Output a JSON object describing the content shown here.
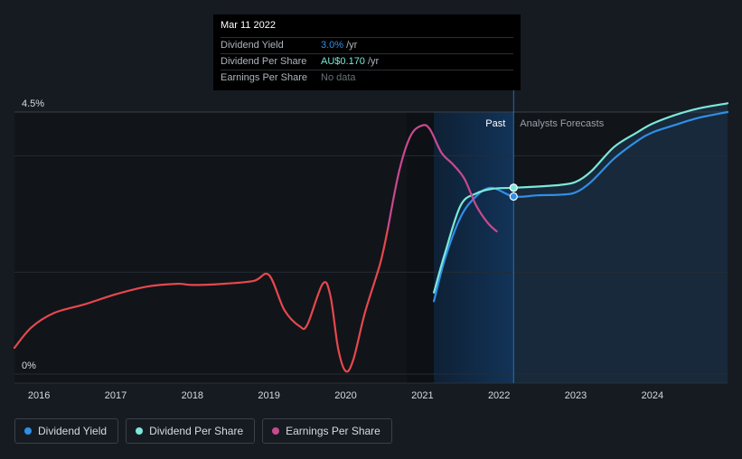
{
  "tooltip": {
    "date": "Mar 11 2022",
    "rows": [
      {
        "label": "Dividend Yield",
        "value": "3.0%",
        "unit": "/yr"
      },
      {
        "label": "Dividend Per Share",
        "value": "AU$0.170",
        "unit": "/yr"
      },
      {
        "label": "Earnings Per Share",
        "value": "No data",
        "unit": ""
      }
    ]
  },
  "annotations": {
    "past": "Past",
    "forecast": "Analysts Forecasts"
  },
  "legend": [
    {
      "label": "Dividend Yield",
      "color": "#2f8fe6"
    },
    {
      "label": "Dividend Per Share",
      "color": "#7ce8d8"
    },
    {
      "label": "Earnings Per Share",
      "color": "#c9498f"
    }
  ],
  "colors": {
    "dividend_yield": "#2f8fe6",
    "dividend_per_share": "#7ce8d8",
    "eps_past": "#e5484d",
    "eps_recent": "#c9498f"
  },
  "chart_data": {
    "type": "line",
    "y_ticks": [
      "4.5%",
      "0%"
    ],
    "x_ticks": [
      "2016",
      "2017",
      "2018",
      "2019",
      "2020",
      "2021",
      "2022",
      "2023",
      "2024"
    ],
    "xlim": [
      2015.68,
      2024.98
    ],
    "ylim": [
      0,
      4.5
    ],
    "grid": true,
    "legend_position": "bottom",
    "past_cutoff": 2022.19,
    "forecast_band_start": 2021.15,
    "series": [
      {
        "name": "Dividend Yield",
        "key": "dividend_yield",
        "points": [
          [
            2021.15,
            1.25
          ],
          [
            2021.3,
            2.0
          ],
          [
            2021.5,
            2.7
          ],
          [
            2021.7,
            3.05
          ],
          [
            2021.9,
            3.2
          ],
          [
            2022.19,
            3.05
          ],
          [
            2022.5,
            3.07
          ],
          [
            2022.8,
            3.08
          ],
          [
            2023.0,
            3.12
          ],
          [
            2023.2,
            3.3
          ],
          [
            2023.5,
            3.7
          ],
          [
            2023.8,
            4.0
          ],
          [
            2024.0,
            4.15
          ],
          [
            2024.3,
            4.28
          ],
          [
            2024.6,
            4.4
          ],
          [
            2024.98,
            4.5
          ]
        ]
      },
      {
        "name": "Dividend Per Share",
        "key": "dividend_per_share",
        "points": [
          [
            2021.15,
            1.4
          ],
          [
            2021.3,
            2.1
          ],
          [
            2021.5,
            2.9
          ],
          [
            2021.7,
            3.1
          ],
          [
            2021.9,
            3.18
          ],
          [
            2022.19,
            3.2
          ],
          [
            2022.5,
            3.22
          ],
          [
            2022.8,
            3.25
          ],
          [
            2023.0,
            3.3
          ],
          [
            2023.2,
            3.48
          ],
          [
            2023.5,
            3.9
          ],
          [
            2023.8,
            4.15
          ],
          [
            2024.0,
            4.3
          ],
          [
            2024.3,
            4.45
          ],
          [
            2024.6,
            4.56
          ],
          [
            2024.98,
            4.65
          ]
        ]
      },
      {
        "name": "Earnings Per Share",
        "key": "eps_past",
        "points": [
          [
            2015.68,
            0.45
          ],
          [
            2015.9,
            0.8
          ],
          [
            2016.2,
            1.05
          ],
          [
            2016.6,
            1.2
          ],
          [
            2017.0,
            1.37
          ],
          [
            2017.4,
            1.5
          ],
          [
            2017.8,
            1.55
          ],
          [
            2018.0,
            1.53
          ],
          [
            2018.4,
            1.55
          ],
          [
            2018.8,
            1.6
          ],
          [
            2019.0,
            1.7
          ],
          [
            2019.2,
            1.1
          ],
          [
            2019.4,
            0.82
          ],
          [
            2019.5,
            0.85
          ],
          [
            2019.7,
            1.55
          ],
          [
            2019.8,
            1.35
          ],
          [
            2019.9,
            0.45
          ],
          [
            2020.0,
            0.05
          ],
          [
            2020.1,
            0.25
          ],
          [
            2020.25,
            1.05
          ],
          [
            2020.45,
            1.9
          ],
          [
            2020.55,
            2.5
          ]
        ]
      },
      {
        "name": "Earnings Per Share",
        "key": "eps_recent",
        "points": [
          [
            2020.55,
            2.5
          ],
          [
            2020.7,
            3.5
          ],
          [
            2020.85,
            4.1
          ],
          [
            2021.0,
            4.27
          ],
          [
            2021.1,
            4.2
          ],
          [
            2021.25,
            3.8
          ],
          [
            2021.4,
            3.6
          ],
          [
            2021.55,
            3.35
          ],
          [
            2021.7,
            2.9
          ],
          [
            2021.85,
            2.6
          ],
          [
            2021.97,
            2.45
          ]
        ]
      }
    ],
    "markers": [
      {
        "series": "dividend_per_share",
        "x": 2022.19,
        "y": 3.2
      },
      {
        "series": "dividend_yield",
        "x": 2022.19,
        "y": 3.05
      }
    ]
  }
}
